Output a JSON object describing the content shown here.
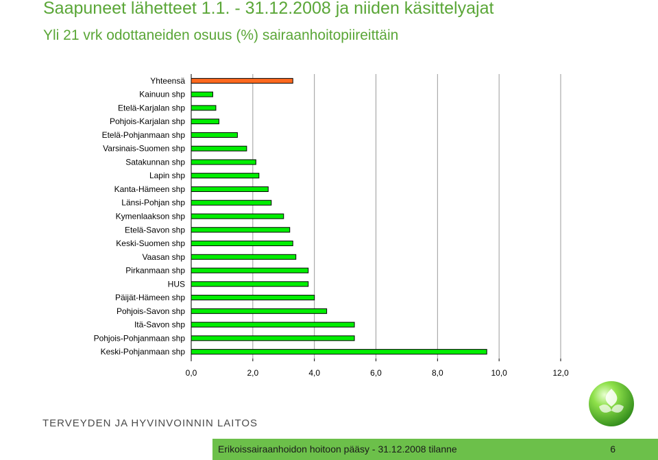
{
  "header": {
    "title": "Saapuneet lähetteet 1.1. - 31.12.2008 ja niiden käsittelyajat",
    "subtitle": "Yli 21 vrk odottaneiden osuus (%) sairaanhoitopiireittäin"
  },
  "chart_data": {
    "type": "bar",
    "orientation": "horizontal",
    "title": "Yli 21 vrk odottaneiden osuus (%) sairaanhoitopiireittäin",
    "xlabel": "",
    "ylabel": "",
    "xlim": [
      0,
      12
    ],
    "xticks": [
      "0,0",
      "2,0",
      "4,0",
      "6,0",
      "8,0",
      "10,0",
      "12,0"
    ],
    "grid": true,
    "bar_color": "#00ee00",
    "highlight_color": "#ff6a1f",
    "categories": [
      "Yhteensä",
      "Kainuun shp",
      "Etelä-Karjalan shp",
      "Pohjois-Karjalan shp",
      "Etelä-Pohjanmaan shp",
      "Varsinais-Suomen shp",
      "Satakunnan shp",
      "Lapin shp",
      "Kanta-Hämeen shp",
      "Länsi-Pohjan shp",
      "Kymenlaakson shp",
      "Etelä-Savon shp",
      "Keski-Suomen shp",
      "Vaasan shp",
      "Pirkanmaan shp",
      "HUS",
      "Päijät-Hämeen shp",
      "Pohjois-Savon shp",
      "Itä-Savon shp",
      "Pohjois-Pohjanmaan shp",
      "Keski-Pohjanmaan shp"
    ],
    "values": [
      3.3,
      0.7,
      0.8,
      0.9,
      1.5,
      1.8,
      2.1,
      2.2,
      2.5,
      2.6,
      3.0,
      3.2,
      3.3,
      3.4,
      3.8,
      3.8,
      4.0,
      4.4,
      5.3,
      5.3,
      9.6
    ],
    "highlight": [
      "Yhteensä"
    ]
  },
  "footer": {
    "organization": "TERVEYDEN JA HYVINVOINNIN LAITOS",
    "caption": "Erikoissairaanhoidon hoitoon pääsy - 31.12.2008 tilanne",
    "page": "6"
  },
  "icons": {
    "logo": "green-sphere-logo-icon"
  }
}
